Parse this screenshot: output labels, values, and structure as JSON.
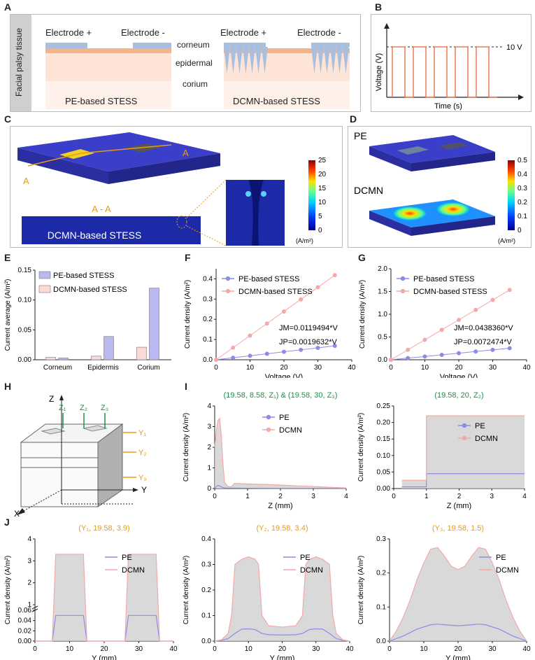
{
  "panel_labels": [
    "A",
    "B",
    "C",
    "D",
    "E",
    "F",
    "G",
    "H",
    "I",
    "J"
  ],
  "panelA": {
    "side_label": "Facial palsy tissue",
    "electrode_plus": "Electrode +",
    "electrode_minus": "Electrode -",
    "layer_corneum": "corneum",
    "layer_epidermal": "epidermal",
    "layer_corium": "corium",
    "left_caption": "PE-based STESS",
    "right_caption": "DCMN-based STESS",
    "colors": {
      "electrode": "#a8bfe0",
      "corneum": "#f4b48a",
      "epidermal": "#fde4d6",
      "corium": "#fff1ea"
    }
  },
  "panelB": {
    "ylabel": "Voltage (V)",
    "xlabel": "Time (s)",
    "level_label": "10 V",
    "pulse_color": "#e8643c"
  },
  "panelC": {
    "section_label": "A",
    "section_label2": "A",
    "section_cut": "A - A",
    "caption": "DCMN-based STESS",
    "colorbar_ticks": [
      "25",
      "20",
      "15",
      "10",
      "5",
      "0"
    ],
    "colorbar_unit": "(A/m²)"
  },
  "panelD": {
    "top_label": "PE",
    "bottom_label": "DCMN",
    "colorbar_ticks": [
      "0.5",
      "0.4",
      "0.3",
      "0.2",
      "0.1",
      "0"
    ],
    "colorbar_unit": "(A/m²)"
  },
  "panelH": {
    "axis_z": "Z",
    "axis_y": "Y",
    "axis_x": "X",
    "z_probes": [
      "Z₁",
      "Z₂",
      "Z₃"
    ],
    "y_probes": [
      "Y₁",
      "Y₂",
      "Y₃"
    ]
  },
  "colors": {
    "pe": "#8c8ce8",
    "dcmn": "#f4a8a8",
    "pe_bar": "#b9b9f0",
    "dcmn_bar": "#fbd9d6",
    "title_green": "#1f8f4a",
    "title_orange": "#e89a1a",
    "fill_gray": "#cfcfcf"
  },
  "chart_data": [
    {
      "id": "E",
      "type": "bar",
      "ylabel": "Current average (A/m²)",
      "categories": [
        "Corneum",
        "Epidermis",
        "Corium"
      ],
      "series": [
        {
          "name": "PE-based STESS",
          "values": [
            0.003,
            0.039,
            0.12
          ]
        },
        {
          "name": "DCMN-based STESS",
          "values": [
            0.004,
            0.006,
            0.021
          ]
        }
      ],
      "ylim": [
        0,
        0.15
      ],
      "yticks": [
        "0.00",
        "0.05",
        "0.10",
        "0.15"
      ],
      "legend": "top-left"
    },
    {
      "id": "F",
      "type": "line",
      "xlabel": "Voltage (V)",
      "ylabel": "Current density (A/m²)",
      "x": [
        0,
        5,
        10,
        15,
        20,
        25,
        30,
        35
      ],
      "series": [
        {
          "name": "PE-based STESS",
          "values": [
            0,
            0.0098,
            0.0196,
            0.0294,
            0.0393,
            0.0491,
            0.0589,
            0.0687
          ]
        },
        {
          "name": "DCMN-based STESS",
          "values": [
            0,
            0.0597,
            0.1195,
            0.1792,
            0.239,
            0.2987,
            0.3585,
            0.4182
          ]
        }
      ],
      "xlim": [
        0,
        40
      ],
      "ylim": [
        0,
        0.45
      ],
      "xticks": [
        "0",
        "10",
        "20",
        "30",
        "40"
      ],
      "yticks": [
        "0.0",
        "0.1",
        "0.2",
        "0.3",
        "0.4"
      ],
      "annotations": [
        "JM=0.0119494*V",
        "JP=0.0019632*V"
      ],
      "legend": "top-left"
    },
    {
      "id": "G",
      "type": "line",
      "xlabel": "Voltage (V)",
      "ylabel": "Current density (A/m²)",
      "x": [
        0,
        5,
        10,
        15,
        20,
        25,
        30,
        35
      ],
      "series": [
        {
          "name": "PE-based STESS",
          "values": [
            0,
            0.036,
            0.072,
            0.108,
            0.145,
            0.181,
            0.217,
            0.254
          ]
        },
        {
          "name": "DCMN-based STESS",
          "values": [
            0,
            0.219,
            0.438,
            0.658,
            0.877,
            1.096,
            1.315,
            1.534
          ]
        }
      ],
      "xlim": [
        0,
        40
      ],
      "ylim": [
        0,
        2.0
      ],
      "xticks": [
        "0",
        "10",
        "20",
        "30",
        "40"
      ],
      "yticks": [
        "0.0",
        "0.5",
        "1.0",
        "1.5",
        "2.0"
      ],
      "annotations": [
        "JM=0.0438360*V",
        "JP=0.0072474*V"
      ],
      "legend": "top-left"
    },
    {
      "id": "I1",
      "type": "line",
      "title": "(19.58, 8.58, Z₁) & (19.58, 30, Z₃)",
      "xlabel": "Z (mm)",
      "ylabel": "Current density (A/m²)",
      "series": [
        {
          "name": "PE",
          "x": [
            0,
            0.05,
            0.1,
            0.15,
            0.2,
            0.25,
            0.3,
            0.4,
            0.5,
            1.0,
            1.5,
            2.0,
            2.5,
            3.0,
            3.5,
            4.0
          ],
          "values": [
            0,
            0.1,
            0.15,
            0.12,
            0.08,
            0.05,
            0.03,
            0.02,
            0.02,
            0.015,
            0.012,
            0.01,
            0.01,
            0.01,
            0.01,
            0.01
          ]
        },
        {
          "name": "DCMN",
          "x": [
            0,
            0.05,
            0.1,
            0.15,
            0.2,
            0.25,
            0.3,
            0.4,
            0.5,
            0.6,
            1.0,
            1.5,
            2.0,
            2.5,
            3.0,
            3.5,
            4.0
          ],
          "values": [
            2.0,
            2.8,
            3.3,
            3.4,
            2.6,
            1.2,
            0.3,
            0.1,
            0.08,
            0.25,
            0.22,
            0.2,
            0.17,
            0.13,
            0.1,
            0.06,
            0.03
          ]
        }
      ],
      "xlim": [
        0,
        4
      ],
      "ylim": [
        0,
        4
      ],
      "xticks": [
        "0",
        "1",
        "2",
        "3",
        "4"
      ],
      "yticks": [
        "0",
        "1",
        "2",
        "3",
        "4"
      ],
      "legend": "top-right"
    },
    {
      "id": "I2",
      "type": "line",
      "title": "(19.58, 20, Z₂)",
      "xlabel": "Z (mm)",
      "ylabel": "Current density (A/m²)",
      "series": [
        {
          "name": "PE",
          "x": [
            0.25,
            1.0,
            1.0,
            4.0
          ],
          "values": [
            0.005,
            0.005,
            0.045,
            0.045
          ]
        },
        {
          "name": "DCMN",
          "x": [
            0.25,
            1.0,
            1.0,
            4.0
          ],
          "values": [
            0.025,
            0.025,
            0.22,
            0.22
          ]
        }
      ],
      "xlim": [
        0,
        4
      ],
      "ylim": [
        0,
        0.25
      ],
      "xticks": [
        "0",
        "1",
        "2",
        "3",
        "4"
      ],
      "yticks": [
        "0.00",
        "0.05",
        "0.10",
        "0.15",
        "0.20",
        "0.25"
      ],
      "legend": "top-right"
    },
    {
      "id": "J1",
      "type": "line",
      "title": "(Y₁, 19.58, 3.9)",
      "xlabel": "Y (mm)",
      "ylabel": "Current density (A/m²)",
      "series": [
        {
          "name": "PE",
          "x": [
            0,
            5,
            6,
            14,
            15,
            26,
            27,
            35,
            36,
            40
          ],
          "values": [
            0,
            0,
            0.05,
            0.05,
            0,
            0,
            0.05,
            0.05,
            0,
            0
          ]
        },
        {
          "name": "DCMN",
          "x": [
            0,
            5,
            6,
            14,
            15,
            26,
            27,
            35,
            36,
            40
          ],
          "values": [
            0,
            0,
            3.3,
            3.3,
            0,
            0,
            3.3,
            3.3,
            0,
            0
          ]
        }
      ],
      "xlim": [
        0,
        40
      ],
      "xticks": [
        "0",
        "10",
        "20",
        "30",
        "40"
      ],
      "yticks_top": [
        "1",
        "2",
        "3",
        "4"
      ],
      "yticks_bottom": [
        "0.00",
        "0.02",
        "0.04",
        "0.06"
      ],
      "legend": "top-right"
    },
    {
      "id": "J2",
      "type": "line",
      "title": "(Y₂, 19.58, 3.4)",
      "xlabel": "Y (mm)",
      "ylabel": "Current density (A/m²)",
      "series": [
        {
          "name": "PE",
          "x": [
            0,
            2,
            4,
            6,
            8,
            10,
            12,
            14,
            16,
            20,
            24,
            26,
            28,
            30,
            32,
            34,
            36,
            38,
            40
          ],
          "values": [
            0,
            0.003,
            0.01,
            0.03,
            0.047,
            0.048,
            0.045,
            0.03,
            0.025,
            0.024,
            0.025,
            0.03,
            0.045,
            0.048,
            0.047,
            0.03,
            0.01,
            0.003,
            0
          ]
        },
        {
          "name": "DCMN",
          "x": [
            0,
            2,
            4,
            5,
            6,
            8,
            10,
            12,
            13,
            14,
            16,
            20,
            24,
            26,
            27,
            28,
            30,
            32,
            34,
            35,
            36,
            38,
            40
          ],
          "values": [
            0,
            0.005,
            0.03,
            0.1,
            0.3,
            0.32,
            0.33,
            0.32,
            0.3,
            0.1,
            0.06,
            0.055,
            0.06,
            0.1,
            0.3,
            0.32,
            0.33,
            0.32,
            0.3,
            0.1,
            0.03,
            0.005,
            0
          ]
        }
      ],
      "xlim": [
        0,
        40
      ],
      "ylim": [
        0,
        0.4
      ],
      "xticks": [
        "0",
        "10",
        "20",
        "30",
        "40"
      ],
      "yticks": [
        "0.0",
        "0.1",
        "0.2",
        "0.3",
        "0.4"
      ],
      "legend": "top-right"
    },
    {
      "id": "J3",
      "type": "line",
      "title": "(Y₃, 19.58, 1.5)",
      "xlabel": "Y (mm)",
      "ylabel": "Current density (A/m²)",
      "series": [
        {
          "name": "PE",
          "x": [
            0,
            4,
            8,
            12,
            14,
            16,
            20,
            24,
            26,
            28,
            32,
            36,
            40
          ],
          "values": [
            0,
            0.015,
            0.035,
            0.048,
            0.05,
            0.048,
            0.045,
            0.048,
            0.05,
            0.048,
            0.035,
            0.015,
            0
          ]
        },
        {
          "name": "DCMN",
          "x": [
            0,
            2,
            4,
            6,
            8,
            10,
            12,
            14,
            16,
            18,
            20,
            22,
            24,
            26,
            28,
            30,
            32,
            34,
            36,
            38,
            40
          ],
          "values": [
            0,
            0.03,
            0.07,
            0.12,
            0.18,
            0.23,
            0.27,
            0.275,
            0.25,
            0.22,
            0.21,
            0.22,
            0.25,
            0.275,
            0.27,
            0.23,
            0.18,
            0.12,
            0.07,
            0.03,
            0
          ]
        }
      ],
      "xlim": [
        0,
        40
      ],
      "ylim": [
        0,
        0.3
      ],
      "xticks": [
        "0",
        "10",
        "20",
        "30",
        "40"
      ],
      "yticks": [
        "0.0",
        "0.1",
        "0.2",
        "0.3"
      ],
      "legend": "top-right"
    }
  ]
}
